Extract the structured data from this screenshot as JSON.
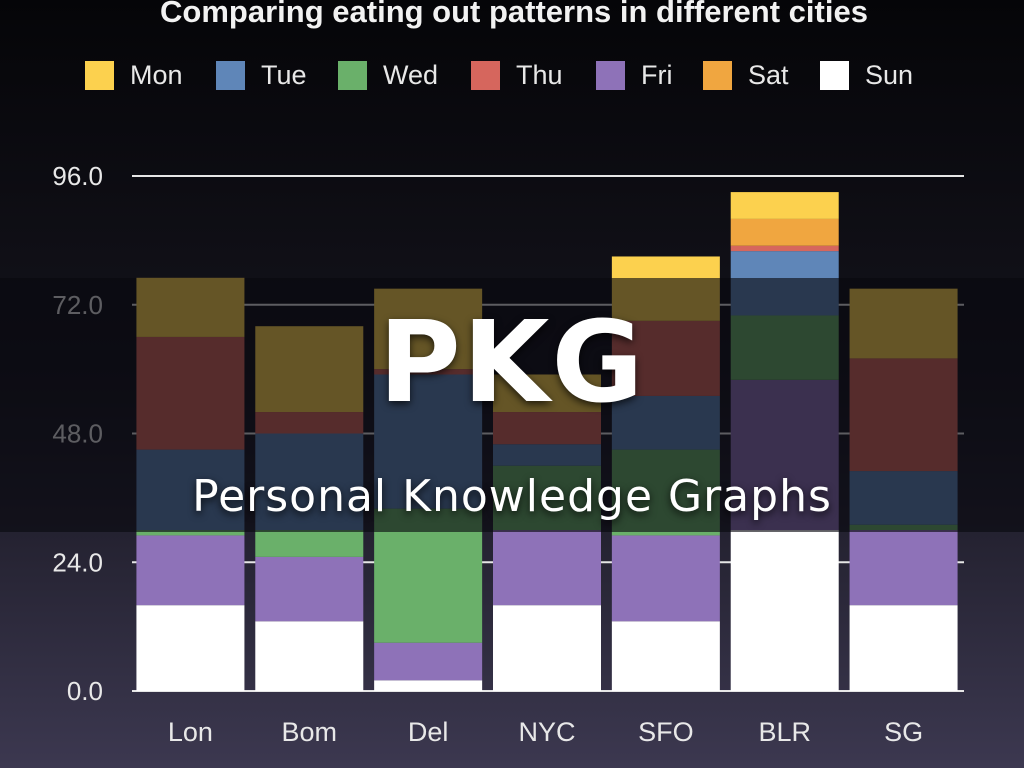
{
  "chart_data": {
    "type": "bar",
    "stacked": true,
    "title": "Comparing eating out patterns in different cities",
    "categories": [
      "Lon",
      "Bom",
      "Del",
      "NYC",
      "SFO",
      "BLR",
      "SG"
    ],
    "ylim": [
      0,
      96
    ],
    "y_ticks": [
      "0.0",
      "24.0",
      "48.0",
      "72.0",
      "96.0"
    ],
    "grid": true,
    "legend_position": "top",
    "series": [
      {
        "name": "Sun",
        "color": "#ffffff",
        "values": [
          16,
          13,
          2,
          16,
          13,
          30,
          16
        ]
      },
      {
        "name": "Fri",
        "color": "#8e72b8",
        "values": [
          13,
          12,
          7,
          14,
          16,
          28,
          14
        ]
      },
      {
        "name": "Wed",
        "color": "#6ab06a",
        "values": [
          1,
          5,
          25,
          12,
          16,
          12,
          1
        ]
      },
      {
        "name": "Tue",
        "color": "#5f86b8",
        "values": [
          15,
          18,
          25,
          4,
          10,
          12,
          10
        ]
      },
      {
        "name": "Thu",
        "color": "#d6665d",
        "values": [
          21,
          4,
          1,
          6,
          14,
          1,
          21
        ]
      },
      {
        "name": "Sat",
        "color": "#f0a640",
        "values": [
          0,
          0,
          0,
          0,
          0,
          5,
          0
        ]
      },
      {
        "name": "Mon",
        "color": "#fcd14e",
        "values": [
          11,
          16,
          15,
          7,
          12,
          5,
          13
        ]
      }
    ],
    "legend_order": [
      "Mon",
      "Tue",
      "Wed",
      "Thu",
      "Fri",
      "Sat",
      "Sun"
    ],
    "stack_fix": {
      "comment_free": true
    }
  },
  "overlay": {
    "title": "PKG",
    "subtitle": "Personal Knowledge Graphs"
  }
}
